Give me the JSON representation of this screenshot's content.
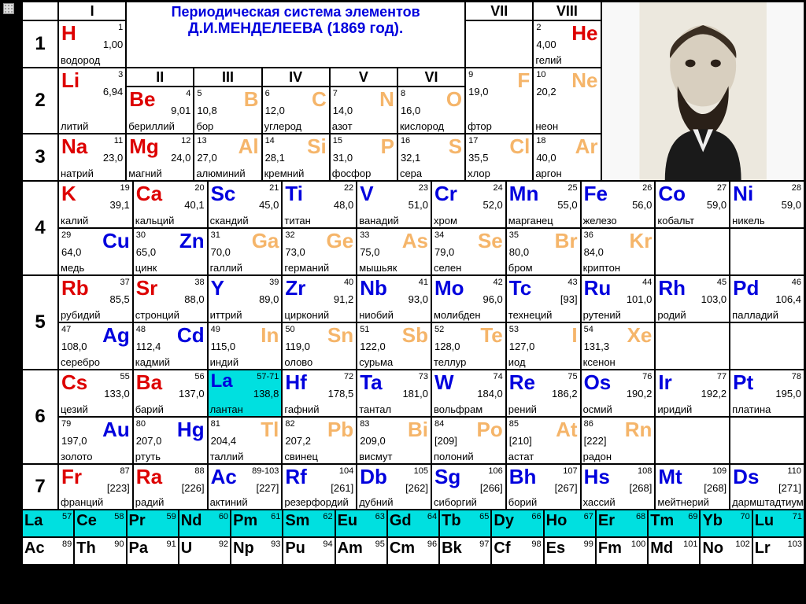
{
  "colors": {
    "red": "#dd0000",
    "blue": "#0000dd",
    "orange": "#f5b56a",
    "black": "#000000",
    "cyan": "#00e0e0",
    "white": "#ffffff",
    "bg": "#000000"
  },
  "title": {
    "line1": "Периодическая система элементов",
    "line2": "Д.И.МЕНДЕЛЕЕВА (1869 год)."
  },
  "groups_top": [
    "I",
    "VII",
    "VIII"
  ],
  "groups_second": [
    "II",
    "III",
    "IV",
    "V",
    "VI"
  ],
  "periods": [
    "1",
    "2",
    "3",
    "4",
    "5",
    "6",
    "7"
  ],
  "cell_colwidths": {
    "period": 46,
    "std": 86,
    "wide": 92,
    "portrait": 176
  },
  "row_heights": {
    "single": 60,
    "double": 60,
    "header": 24,
    "series": 35
  },
  "fontsize": {
    "symbol": 26,
    "number": 11,
    "mass": 13,
    "name": 13,
    "period": 24,
    "group": 18,
    "series_sym": 20
  },
  "elements": {
    "H": {
      "n": "1",
      "m": "1,00",
      "name": "водород",
      "c": "red",
      "a": "L"
    },
    "He": {
      "n": "2",
      "m": "4,00",
      "name": "гелий",
      "c": "red",
      "a": "R"
    },
    "Li": {
      "n": "3",
      "m": "6,94",
      "name": "литий",
      "c": "red",
      "a": "L"
    },
    "Be": {
      "n": "4",
      "m": "9,01",
      "name": "бериллий",
      "c": "red",
      "a": "L"
    },
    "B": {
      "n": "5",
      "m": "10,8",
      "name": "бор",
      "c": "orange",
      "a": "R"
    },
    "C": {
      "n": "6",
      "m": "12,0",
      "name": "углерод",
      "c": "orange",
      "a": "R"
    },
    "N": {
      "n": "7",
      "m": "14,0",
      "name": "азот",
      "c": "orange",
      "a": "R"
    },
    "O": {
      "n": "8",
      "m": "16,0",
      "name": "кислород",
      "c": "orange",
      "a": "R"
    },
    "F": {
      "n": "9",
      "m": "19,0",
      "name": "фтор",
      "c": "orange",
      "a": "R"
    },
    "Ne": {
      "n": "10",
      "m": "20,2",
      "name": "неон",
      "c": "orange",
      "a": "R"
    },
    "Na": {
      "n": "11",
      "m": "23,0",
      "name": "натрий",
      "c": "red",
      "a": "L"
    },
    "Mg": {
      "n": "12",
      "m": "24,0",
      "name": "магний",
      "c": "red",
      "a": "L"
    },
    "Al": {
      "n": "13",
      "m": "27,0",
      "name": "алюминий",
      "c": "orange",
      "a": "R"
    },
    "Si": {
      "n": "14",
      "m": "28,1",
      "name": "кремний",
      "c": "orange",
      "a": "R"
    },
    "P": {
      "n": "15",
      "m": "31,0",
      "name": "фосфор",
      "c": "orange",
      "a": "R"
    },
    "S": {
      "n": "16",
      "m": "32,1",
      "name": "сера",
      "c": "orange",
      "a": "R"
    },
    "Cl": {
      "n": "17",
      "m": "35,5",
      "name": "хлор",
      "c": "orange",
      "a": "R"
    },
    "Ar": {
      "n": "18",
      "m": "40,0",
      "name": "аргон",
      "c": "orange",
      "a": "R"
    },
    "K": {
      "n": "19",
      "m": "39,1",
      "name": "калий",
      "c": "red",
      "a": "L"
    },
    "Ca": {
      "n": "20",
      "m": "40,1",
      "name": "кальций",
      "c": "red",
      "a": "L"
    },
    "Sc": {
      "n": "21",
      "m": "45,0",
      "name": "скандий",
      "c": "blue",
      "a": "L"
    },
    "Ti": {
      "n": "22",
      "m": "48,0",
      "name": "титан",
      "c": "blue",
      "a": "L"
    },
    "V": {
      "n": "23",
      "m": "51,0",
      "name": "ванадий",
      "c": "blue",
      "a": "L"
    },
    "Cr": {
      "n": "24",
      "m": "52,0",
      "name": "хром",
      "c": "blue",
      "a": "L"
    },
    "Mn": {
      "n": "25",
      "m": "55,0",
      "name": "марганец",
      "c": "blue",
      "a": "L"
    },
    "Fe": {
      "n": "26",
      "m": "56,0",
      "name": "железо",
      "c": "blue",
      "a": "L"
    },
    "Co": {
      "n": "27",
      "m": "59,0",
      "name": "кобальт",
      "c": "blue",
      "a": "L"
    },
    "Ni": {
      "n": "28",
      "m": "59,0",
      "name": "никель",
      "c": "blue",
      "a": "L"
    },
    "Cu": {
      "n": "29",
      "m": "64,0",
      "name": "медь",
      "c": "blue",
      "a": "R"
    },
    "Zn": {
      "n": "30",
      "m": "65,0",
      "name": "цинк",
      "c": "blue",
      "a": "R"
    },
    "Ga": {
      "n": "31",
      "m": "70,0",
      "name": "галлий",
      "c": "orange",
      "a": "R"
    },
    "Ge": {
      "n": "32",
      "m": "73,0",
      "name": "германий",
      "c": "orange",
      "a": "R"
    },
    "As": {
      "n": "33",
      "m": "75,0",
      "name": "мышьяк",
      "c": "orange",
      "a": "R"
    },
    "Se": {
      "n": "34",
      "m": "79,0",
      "name": "селен",
      "c": "orange",
      "a": "R"
    },
    "Br": {
      "n": "35",
      "m": "80,0",
      "name": "бром",
      "c": "orange",
      "a": "R"
    },
    "Kr": {
      "n": "36",
      "m": "84,0",
      "name": "криптон",
      "c": "orange",
      "a": "R"
    },
    "Rb": {
      "n": "37",
      "m": "85,5",
      "name": "рубидий",
      "c": "red",
      "a": "L"
    },
    "Sr": {
      "n": "38",
      "m": "88,0",
      "name": "стронций",
      "c": "red",
      "a": "L"
    },
    "Y": {
      "n": "39",
      "m": "89,0",
      "name": "иттрий",
      "c": "blue",
      "a": "L"
    },
    "Zr": {
      "n": "40",
      "m": "91,2",
      "name": "цирконий",
      "c": "blue",
      "a": "L"
    },
    "Nb": {
      "n": "41",
      "m": "93,0",
      "name": "ниобий",
      "c": "blue",
      "a": "L"
    },
    "Mo": {
      "n": "42",
      "m": "96,0",
      "name": "молибден",
      "c": "blue",
      "a": "L"
    },
    "Tc": {
      "n": "43",
      "m": "[93]",
      "name": "технеций",
      "c": "blue",
      "a": "L"
    },
    "Ru": {
      "n": "44",
      "m": "101,0",
      "name": "рутений",
      "c": "blue",
      "a": "L"
    },
    "Rh": {
      "n": "45",
      "m": "103,0",
      "name": "родий",
      "c": "blue",
      "a": "L"
    },
    "Pd": {
      "n": "46",
      "m": "106,4",
      "name": "палладий",
      "c": "blue",
      "a": "L"
    },
    "Ag": {
      "n": "47",
      "m": "108,0",
      "name": "серебро",
      "c": "blue",
      "a": "R"
    },
    "Cd": {
      "n": "48",
      "m": "112,4",
      "name": "кадмий",
      "c": "blue",
      "a": "R"
    },
    "In": {
      "n": "49",
      "m": "115,0",
      "name": "индий",
      "c": "orange",
      "a": "R"
    },
    "Sn": {
      "n": "50",
      "m": "119,0",
      "name": "олово",
      "c": "orange",
      "a": "R"
    },
    "Sb": {
      "n": "51",
      "m": "122,0",
      "name": "сурьма",
      "c": "orange",
      "a": "R"
    },
    "Te": {
      "n": "52",
      "m": "128,0",
      "name": "теллур",
      "c": "orange",
      "a": "R"
    },
    "I": {
      "n": "53",
      "m": "127,0",
      "name": "иод",
      "c": "orange",
      "a": "R"
    },
    "Xe": {
      "n": "54",
      "m": "131,3",
      "name": "ксенон",
      "c": "orange",
      "a": "R"
    },
    "Cs": {
      "n": "55",
      "m": "133,0",
      "name": "цезий",
      "c": "red",
      "a": "L"
    },
    "Ba": {
      "n": "56",
      "m": "137,0",
      "name": "барий",
      "c": "red",
      "a": "L"
    },
    "La": {
      "n": "57-71",
      "m": "138,8",
      "name": "лантан",
      "c": "blue",
      "a": "L",
      "hi": true
    },
    "Hf": {
      "n": "72",
      "m": "178,5",
      "name": "гафний",
      "c": "blue",
      "a": "L"
    },
    "Ta": {
      "n": "73",
      "m": "181,0",
      "name": "тантал",
      "c": "blue",
      "a": "L"
    },
    "W": {
      "n": "74",
      "m": "184,0",
      "name": "вольфрам",
      "c": "blue",
      "a": "L"
    },
    "Re": {
      "n": "75",
      "m": "186,2",
      "name": "рений",
      "c": "blue",
      "a": "L"
    },
    "Os": {
      "n": "76",
      "m": "190,2",
      "name": "осмий",
      "c": "blue",
      "a": "L"
    },
    "Ir": {
      "n": "77",
      "m": "192,2",
      "name": "иридий",
      "c": "blue",
      "a": "L"
    },
    "Pt": {
      "n": "78",
      "m": "195,0",
      "name": "платина",
      "c": "blue",
      "a": "L"
    },
    "Au": {
      "n": "79",
      "m": "197,0",
      "name": "золото",
      "c": "blue",
      "a": "R"
    },
    "Hg": {
      "n": "80",
      "m": "207,0",
      "name": "ртуть",
      "c": "blue",
      "a": "R"
    },
    "Tl": {
      "n": "81",
      "m": "204,4",
      "name": "таллий",
      "c": "orange",
      "a": "R"
    },
    "Pb": {
      "n": "82",
      "m": "207,2",
      "name": "свинец",
      "c": "orange",
      "a": "R"
    },
    "Bi": {
      "n": "83",
      "m": "209,0",
      "name": "висмут",
      "c": "orange",
      "a": "R"
    },
    "Po": {
      "n": "84",
      "m": "[209]",
      "name": "полоний",
      "c": "orange",
      "a": "R"
    },
    "At": {
      "n": "85",
      "m": "[210]",
      "name": "астат",
      "c": "orange",
      "a": "R"
    },
    "Rn": {
      "n": "86",
      "m": "[222]",
      "name": "радон",
      "c": "orange",
      "a": "R"
    },
    "Fr": {
      "n": "87",
      "m": "[223]",
      "name": "франций",
      "c": "red",
      "a": "L"
    },
    "Ra": {
      "n": "88",
      "m": "[226]",
      "name": "радий",
      "c": "red",
      "a": "L"
    },
    "Ac": {
      "n": "89-103",
      "m": "[227]",
      "name": "актиний",
      "c": "blue",
      "a": "L"
    },
    "Rf": {
      "n": "104",
      "m": "[261]",
      "name": "резерфордий",
      "c": "blue",
      "a": "L"
    },
    "Db": {
      "n": "105",
      "m": "[262]",
      "name": "дубний",
      "c": "blue",
      "a": "L"
    },
    "Sg": {
      "n": "106",
      "m": "[266]",
      "name": "сиборгий",
      "c": "blue",
      "a": "L"
    },
    "Bh": {
      "n": "107",
      "m": "[267]",
      "name": "борий",
      "c": "blue",
      "a": "L"
    },
    "Hs": {
      "n": "108",
      "m": "[268]",
      "name": "хассий",
      "c": "blue",
      "a": "L"
    },
    "Mt": {
      "n": "109",
      "m": "[268]",
      "name": "мейтнерий",
      "c": "blue",
      "a": "L"
    },
    "Ds": {
      "n": "110",
      "m": "[271]",
      "name": "дармштадтиум",
      "c": "blue",
      "a": "L"
    }
  },
  "lanthanides": [
    {
      "s": "La",
      "n": "57"
    },
    {
      "s": "Ce",
      "n": "58"
    },
    {
      "s": "Pr",
      "n": "59"
    },
    {
      "s": "Nd",
      "n": "60"
    },
    {
      "s": "Pm",
      "n": "61"
    },
    {
      "s": "Sm",
      "n": "62"
    },
    {
      "s": "Eu",
      "n": "63"
    },
    {
      "s": "Gd",
      "n": "64"
    },
    {
      "s": "Tb",
      "n": "65"
    },
    {
      "s": "Dy",
      "n": "66"
    },
    {
      "s": "Ho",
      "n": "67"
    },
    {
      "s": "Er",
      "n": "68"
    },
    {
      "s": "Tm",
      "n": "69"
    },
    {
      "s": "Yb",
      "n": "70"
    },
    {
      "s": "Lu",
      "n": "71"
    }
  ],
  "actinides": [
    {
      "s": "Ac",
      "n": "89"
    },
    {
      "s": "Th",
      "n": "90"
    },
    {
      "s": "Pa",
      "n": "91"
    },
    {
      "s": "U",
      "n": "92"
    },
    {
      "s": "Np",
      "n": "93"
    },
    {
      "s": "Pu",
      "n": "94"
    },
    {
      "s": "Am",
      "n": "95"
    },
    {
      "s": "Cm",
      "n": "96"
    },
    {
      "s": "Bk",
      "n": "97"
    },
    {
      "s": "Cf",
      "n": "98"
    },
    {
      "s": "Es",
      "n": "99"
    },
    {
      "s": "Fm",
      "n": "100"
    },
    {
      "s": "Md",
      "n": "101"
    },
    {
      "s": "No",
      "n": "102"
    },
    {
      "s": "Lr",
      "n": "103"
    }
  ],
  "layout": {
    "row1": [
      "H",
      null,
      "He"
    ],
    "row2": [
      "Li",
      "Be",
      "B",
      "C",
      "N",
      "O",
      "F",
      "Ne"
    ],
    "row3": [
      "Na",
      "Mg",
      "Al",
      "Si",
      "P",
      "S",
      "Cl",
      "Ar"
    ],
    "row4a": [
      "K",
      "Ca",
      "Sc",
      "Ti",
      "V",
      "Cr",
      "Mn",
      "Fe",
      "Co",
      "Ni"
    ],
    "row4b": [
      "Cu",
      "Zn",
      "Ga",
      "Ge",
      "As",
      "Se",
      "Br",
      "Kr"
    ],
    "row5a": [
      "Rb",
      "Sr",
      "Y",
      "Zr",
      "Nb",
      "Mo",
      "Tc",
      "Ru",
      "Rh",
      "Pd"
    ],
    "row5b": [
      "Ag",
      "Cd",
      "In",
      "Sn",
      "Sb",
      "Te",
      "I",
      "Xe"
    ],
    "row6a": [
      "Cs",
      "Ba",
      "La",
      "Hf",
      "Ta",
      "W",
      "Re",
      "Os",
      "Ir",
      "Pt"
    ],
    "row6b": [
      "Au",
      "Hg",
      "Tl",
      "Pb",
      "Bi",
      "Po",
      "At",
      "Rn"
    ],
    "row7": [
      "Fr",
      "Ra",
      "Ac",
      "Rf",
      "Db",
      "Sg",
      "Bh",
      "Hs",
      "Mt",
      "Ds"
    ]
  }
}
